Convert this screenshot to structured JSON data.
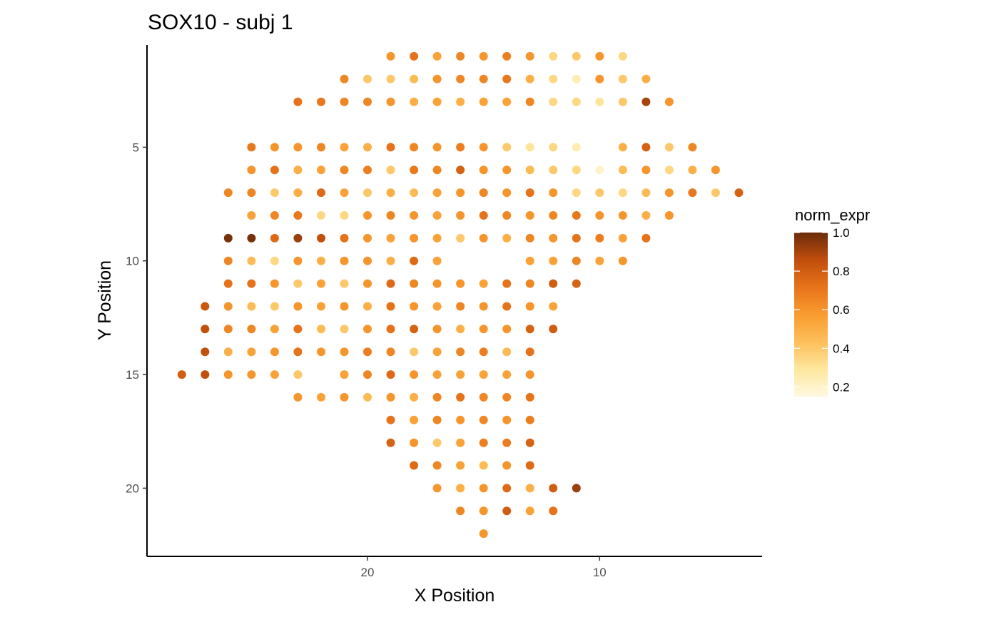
{
  "chart_data": {
    "type": "scatter",
    "title": "SOX10 - subj 1",
    "xlabel": "X Position",
    "ylabel": "Y Position",
    "x_reversed": true,
    "y_reversed": true,
    "xlim": [
      3.0,
      29.5
    ],
    "ylim": [
      0.5,
      23.0
    ],
    "x_ticks": [
      20,
      10
    ],
    "y_ticks": [
      5,
      10,
      15,
      20
    ],
    "grid": false,
    "color_legend": {
      "title": "norm_expr",
      "ticks": [
        1.0,
        0.8,
        0.6,
        0.4,
        0.2
      ],
      "range": [
        0.15,
        1.0
      ],
      "colors": [
        "#fff9e0",
        "#fee79e",
        "#fdbf5a",
        "#f99c30",
        "#e7731a",
        "#c04e0c",
        "#6b2c0b"
      ]
    },
    "legend_position": "right",
    "points": [
      {
        "x": 19,
        "y": 1,
        "v": 0.6
      },
      {
        "x": 18,
        "y": 1,
        "v": 0.72
      },
      {
        "x": 17,
        "y": 1,
        "v": 0.55
      },
      {
        "x": 16,
        "y": 1,
        "v": 0.65
      },
      {
        "x": 15,
        "y": 1,
        "v": 0.6
      },
      {
        "x": 14,
        "y": 1,
        "v": 0.68
      },
      {
        "x": 13,
        "y": 1,
        "v": 0.6
      },
      {
        "x": 12,
        "y": 1,
        "v": 0.35
      },
      {
        "x": 11,
        "y": 1,
        "v": 0.4
      },
      {
        "x": 10,
        "y": 1,
        "v": 0.6
      },
      {
        "x": 9,
        "y": 1,
        "v": 0.35
      },
      {
        "x": 21,
        "y": 2,
        "v": 0.65
      },
      {
        "x": 20,
        "y": 2,
        "v": 0.4
      },
      {
        "x": 19,
        "y": 2,
        "v": 0.4
      },
      {
        "x": 18,
        "y": 2,
        "v": 0.45
      },
      {
        "x": 17,
        "y": 2,
        "v": 0.6
      },
      {
        "x": 16,
        "y": 2,
        "v": 0.65
      },
      {
        "x": 15,
        "y": 2,
        "v": 0.65
      },
      {
        "x": 14,
        "y": 2,
        "v": 0.7
      },
      {
        "x": 13,
        "y": 2,
        "v": 0.5
      },
      {
        "x": 12,
        "y": 2,
        "v": 0.35
      },
      {
        "x": 11,
        "y": 2,
        "v": 0.25
      },
      {
        "x": 10,
        "y": 2,
        "v": 0.6
      },
      {
        "x": 9,
        "y": 2,
        "v": 0.4
      },
      {
        "x": 8,
        "y": 2,
        "v": 0.5
      },
      {
        "x": 23,
        "y": 3,
        "v": 0.72
      },
      {
        "x": 22,
        "y": 3,
        "v": 0.7
      },
      {
        "x": 21,
        "y": 3,
        "v": 0.65
      },
      {
        "x": 20,
        "y": 3,
        "v": 0.65
      },
      {
        "x": 19,
        "y": 3,
        "v": 0.6
      },
      {
        "x": 18,
        "y": 3,
        "v": 0.5
      },
      {
        "x": 17,
        "y": 3,
        "v": 0.55
      },
      {
        "x": 16,
        "y": 3,
        "v": 0.5
      },
      {
        "x": 15,
        "y": 3,
        "v": 0.55
      },
      {
        "x": 14,
        "y": 3,
        "v": 0.55
      },
      {
        "x": 13,
        "y": 3,
        "v": 0.65
      },
      {
        "x": 12,
        "y": 3,
        "v": 0.35
      },
      {
        "x": 11,
        "y": 3,
        "v": 0.35
      },
      {
        "x": 10,
        "y": 3,
        "v": 0.3
      },
      {
        "x": 9,
        "y": 3,
        "v": 0.4
      },
      {
        "x": 8,
        "y": 3,
        "v": 0.9
      },
      {
        "x": 7,
        "y": 3,
        "v": 0.6
      },
      {
        "x": 25,
        "y": 5,
        "v": 0.7
      },
      {
        "x": 24,
        "y": 5,
        "v": 0.6
      },
      {
        "x": 23,
        "y": 5,
        "v": 0.6
      },
      {
        "x": 22,
        "y": 5,
        "v": 0.65
      },
      {
        "x": 21,
        "y": 5,
        "v": 0.55
      },
      {
        "x": 20,
        "y": 5,
        "v": 0.5
      },
      {
        "x": 19,
        "y": 5,
        "v": 0.72
      },
      {
        "x": 18,
        "y": 5,
        "v": 0.65
      },
      {
        "x": 17,
        "y": 5,
        "v": 0.6
      },
      {
        "x": 16,
        "y": 5,
        "v": 0.68
      },
      {
        "x": 15,
        "y": 5,
        "v": 0.6
      },
      {
        "x": 14,
        "y": 5,
        "v": 0.4
      },
      {
        "x": 13,
        "y": 5,
        "v": 0.3
      },
      {
        "x": 12,
        "y": 5,
        "v": 0.35
      },
      {
        "x": 11,
        "y": 5,
        "v": 0.25
      },
      {
        "x": 9,
        "y": 5,
        "v": 0.5
      },
      {
        "x": 8,
        "y": 5,
        "v": 0.78
      },
      {
        "x": 7,
        "y": 5,
        "v": 0.4
      },
      {
        "x": 6,
        "y": 5,
        "v": 0.65
      },
      {
        "x": 25,
        "y": 6,
        "v": 0.6
      },
      {
        "x": 24,
        "y": 6,
        "v": 0.72
      },
      {
        "x": 23,
        "y": 6,
        "v": 0.5
      },
      {
        "x": 22,
        "y": 6,
        "v": 0.55
      },
      {
        "x": 21,
        "y": 6,
        "v": 0.65
      },
      {
        "x": 20,
        "y": 6,
        "v": 0.68
      },
      {
        "x": 19,
        "y": 6,
        "v": 0.4
      },
      {
        "x": 18,
        "y": 6,
        "v": 0.7
      },
      {
        "x": 17,
        "y": 6,
        "v": 0.65
      },
      {
        "x": 16,
        "y": 6,
        "v": 0.78
      },
      {
        "x": 15,
        "y": 6,
        "v": 0.6
      },
      {
        "x": 14,
        "y": 6,
        "v": 0.6
      },
      {
        "x": 13,
        "y": 6,
        "v": 0.45
      },
      {
        "x": 12,
        "y": 6,
        "v": 0.4
      },
      {
        "x": 11,
        "y": 6,
        "v": 0.35
      },
      {
        "x": 10,
        "y": 6,
        "v": 0.2
      },
      {
        "x": 9,
        "y": 6,
        "v": 0.45
      },
      {
        "x": 8,
        "y": 6,
        "v": 0.6
      },
      {
        "x": 7,
        "y": 6,
        "v": 0.35
      },
      {
        "x": 6,
        "y": 6,
        "v": 0.5
      },
      {
        "x": 5,
        "y": 6,
        "v": 0.6
      },
      {
        "x": 26,
        "y": 7,
        "v": 0.65
      },
      {
        "x": 25,
        "y": 7,
        "v": 0.65
      },
      {
        "x": 24,
        "y": 7,
        "v": 0.4
      },
      {
        "x": 23,
        "y": 7,
        "v": 0.5
      },
      {
        "x": 22,
        "y": 7,
        "v": 0.75
      },
      {
        "x": 21,
        "y": 7,
        "v": 0.55
      },
      {
        "x": 20,
        "y": 7,
        "v": 0.4
      },
      {
        "x": 19,
        "y": 7,
        "v": 0.5
      },
      {
        "x": 18,
        "y": 7,
        "v": 0.45
      },
      {
        "x": 17,
        "y": 7,
        "v": 0.55
      },
      {
        "x": 16,
        "y": 7,
        "v": 0.6
      },
      {
        "x": 15,
        "y": 7,
        "v": 0.65
      },
      {
        "x": 14,
        "y": 7,
        "v": 0.6
      },
      {
        "x": 13,
        "y": 7,
        "v": 0.72
      },
      {
        "x": 12,
        "y": 7,
        "v": 0.6
      },
      {
        "x": 11,
        "y": 7,
        "v": 0.35
      },
      {
        "x": 10,
        "y": 7,
        "v": 0.4
      },
      {
        "x": 9,
        "y": 7,
        "v": 0.35
      },
      {
        "x": 8,
        "y": 7,
        "v": 0.45
      },
      {
        "x": 7,
        "y": 7,
        "v": 0.6
      },
      {
        "x": 6,
        "y": 7,
        "v": 0.7
      },
      {
        "x": 5,
        "y": 7,
        "v": 0.4
      },
      {
        "x": 4,
        "y": 7,
        "v": 0.78
      },
      {
        "x": 25,
        "y": 8,
        "v": 0.55
      },
      {
        "x": 24,
        "y": 8,
        "v": 0.65
      },
      {
        "x": 23,
        "y": 8,
        "v": 0.7
      },
      {
        "x": 22,
        "y": 8,
        "v": 0.35
      },
      {
        "x": 21,
        "y": 8,
        "v": 0.35
      },
      {
        "x": 20,
        "y": 8,
        "v": 0.6
      },
      {
        "x": 19,
        "y": 8,
        "v": 0.65
      },
      {
        "x": 18,
        "y": 8,
        "v": 0.6
      },
      {
        "x": 17,
        "y": 8,
        "v": 0.55
      },
      {
        "x": 16,
        "y": 8,
        "v": 0.6
      },
      {
        "x": 15,
        "y": 8,
        "v": 0.72
      },
      {
        "x": 14,
        "y": 8,
        "v": 0.65
      },
      {
        "x": 13,
        "y": 8,
        "v": 0.6
      },
      {
        "x": 12,
        "y": 8,
        "v": 0.65
      },
      {
        "x": 11,
        "y": 8,
        "v": 0.7
      },
      {
        "x": 10,
        "y": 8,
        "v": 0.6
      },
      {
        "x": 9,
        "y": 8,
        "v": 0.6
      },
      {
        "x": 8,
        "y": 8,
        "v": 0.5
      },
      {
        "x": 7,
        "y": 8,
        "v": 0.6
      },
      {
        "x": 26,
        "y": 9,
        "v": 0.98
      },
      {
        "x": 25,
        "y": 9,
        "v": 0.98
      },
      {
        "x": 24,
        "y": 9,
        "v": 0.75
      },
      {
        "x": 23,
        "y": 9,
        "v": 0.92
      },
      {
        "x": 22,
        "y": 9,
        "v": 0.85
      },
      {
        "x": 21,
        "y": 9,
        "v": 0.72
      },
      {
        "x": 20,
        "y": 9,
        "v": 0.6
      },
      {
        "x": 19,
        "y": 9,
        "v": 0.55
      },
      {
        "x": 18,
        "y": 9,
        "v": 0.6
      },
      {
        "x": 17,
        "y": 9,
        "v": 0.55
      },
      {
        "x": 16,
        "y": 9,
        "v": 0.4
      },
      {
        "x": 15,
        "y": 9,
        "v": 0.6
      },
      {
        "x": 14,
        "y": 9,
        "v": 0.5
      },
      {
        "x": 13,
        "y": 9,
        "v": 0.65
      },
      {
        "x": 12,
        "y": 9,
        "v": 0.6
      },
      {
        "x": 11,
        "y": 9,
        "v": 0.72
      },
      {
        "x": 10,
        "y": 9,
        "v": 0.68
      },
      {
        "x": 9,
        "y": 9,
        "v": 0.55
      },
      {
        "x": 8,
        "y": 9,
        "v": 0.72
      },
      {
        "x": 26,
        "y": 10,
        "v": 0.65
      },
      {
        "x": 25,
        "y": 10,
        "v": 0.45
      },
      {
        "x": 24,
        "y": 10,
        "v": 0.35
      },
      {
        "x": 23,
        "y": 10,
        "v": 0.6
      },
      {
        "x": 22,
        "y": 10,
        "v": 0.5
      },
      {
        "x": 21,
        "y": 10,
        "v": 0.6
      },
      {
        "x": 20,
        "y": 10,
        "v": 0.6
      },
      {
        "x": 19,
        "y": 10,
        "v": 0.5
      },
      {
        "x": 18,
        "y": 10,
        "v": 0.75
      },
      {
        "x": 17,
        "y": 10,
        "v": 0.55
      },
      {
        "x": 13,
        "y": 10,
        "v": 0.55
      },
      {
        "x": 12,
        "y": 10,
        "v": 0.55
      },
      {
        "x": 11,
        "y": 10,
        "v": 0.65
      },
      {
        "x": 10,
        "y": 10,
        "v": 0.55
      },
      {
        "x": 9,
        "y": 10,
        "v": 0.6
      },
      {
        "x": 26,
        "y": 11,
        "v": 0.72
      },
      {
        "x": 25,
        "y": 11,
        "v": 0.72
      },
      {
        "x": 24,
        "y": 11,
        "v": 0.6
      },
      {
        "x": 23,
        "y": 11,
        "v": 0.4
      },
      {
        "x": 22,
        "y": 11,
        "v": 0.55
      },
      {
        "x": 21,
        "y": 11,
        "v": 0.4
      },
      {
        "x": 20,
        "y": 11,
        "v": 0.6
      },
      {
        "x": 19,
        "y": 11,
        "v": 0.75
      },
      {
        "x": 18,
        "y": 11,
        "v": 0.65
      },
      {
        "x": 17,
        "y": 11,
        "v": 0.6
      },
      {
        "x": 16,
        "y": 11,
        "v": 0.6
      },
      {
        "x": 15,
        "y": 11,
        "v": 0.55
      },
      {
        "x": 14,
        "y": 11,
        "v": 0.72
      },
      {
        "x": 13,
        "y": 11,
        "v": 0.65
      },
      {
        "x": 12,
        "y": 11,
        "v": 0.8
      },
      {
        "x": 11,
        "y": 11,
        "v": 0.78
      },
      {
        "x": 27,
        "y": 12,
        "v": 0.82
      },
      {
        "x": 26,
        "y": 12,
        "v": 0.6
      },
      {
        "x": 25,
        "y": 12,
        "v": 0.45
      },
      {
        "x": 24,
        "y": 12,
        "v": 0.4
      },
      {
        "x": 23,
        "y": 12,
        "v": 0.6
      },
      {
        "x": 22,
        "y": 12,
        "v": 0.55
      },
      {
        "x": 21,
        "y": 12,
        "v": 0.6
      },
      {
        "x": 20,
        "y": 12,
        "v": 0.5
      },
      {
        "x": 19,
        "y": 12,
        "v": 0.72
      },
      {
        "x": 18,
        "y": 12,
        "v": 0.6
      },
      {
        "x": 17,
        "y": 12,
        "v": 0.55
      },
      {
        "x": 16,
        "y": 12,
        "v": 0.65
      },
      {
        "x": 15,
        "y": 12,
        "v": 0.6
      },
      {
        "x": 14,
        "y": 12,
        "v": 0.72
      },
      {
        "x": 13,
        "y": 12,
        "v": 0.6
      },
      {
        "x": 12,
        "y": 12,
        "v": 0.55
      },
      {
        "x": 27,
        "y": 13,
        "v": 0.85
      },
      {
        "x": 26,
        "y": 13,
        "v": 0.65
      },
      {
        "x": 25,
        "y": 13,
        "v": 0.65
      },
      {
        "x": 24,
        "y": 13,
        "v": 0.55
      },
      {
        "x": 23,
        "y": 13,
        "v": 0.72
      },
      {
        "x": 22,
        "y": 13,
        "v": 0.45
      },
      {
        "x": 21,
        "y": 13,
        "v": 0.4
      },
      {
        "x": 20,
        "y": 13,
        "v": 0.6
      },
      {
        "x": 19,
        "y": 13,
        "v": 0.72
      },
      {
        "x": 18,
        "y": 13,
        "v": 0.78
      },
      {
        "x": 17,
        "y": 13,
        "v": 0.6
      },
      {
        "x": 16,
        "y": 13,
        "v": 0.5
      },
      {
        "x": 15,
        "y": 13,
        "v": 0.6
      },
      {
        "x": 14,
        "y": 13,
        "v": 0.6
      },
      {
        "x": 13,
        "y": 13,
        "v": 0.78
      },
      {
        "x": 12,
        "y": 13,
        "v": 0.8
      },
      {
        "x": 27,
        "y": 14,
        "v": 0.85
      },
      {
        "x": 26,
        "y": 14,
        "v": 0.5
      },
      {
        "x": 25,
        "y": 14,
        "v": 0.55
      },
      {
        "x": 24,
        "y": 14,
        "v": 0.6
      },
      {
        "x": 23,
        "y": 14,
        "v": 0.72
      },
      {
        "x": 22,
        "y": 14,
        "v": 0.6
      },
      {
        "x": 21,
        "y": 14,
        "v": 0.6
      },
      {
        "x": 20,
        "y": 14,
        "v": 0.68
      },
      {
        "x": 19,
        "y": 14,
        "v": 0.65
      },
      {
        "x": 18,
        "y": 14,
        "v": 0.4
      },
      {
        "x": 17,
        "y": 14,
        "v": 0.55
      },
      {
        "x": 16,
        "y": 14,
        "v": 0.65
      },
      {
        "x": 15,
        "y": 14,
        "v": 0.68
      },
      {
        "x": 14,
        "y": 14,
        "v": 0.45
      },
      {
        "x": 13,
        "y": 14,
        "v": 0.72
      },
      {
        "x": 28,
        "y": 15,
        "v": 0.8
      },
      {
        "x": 27,
        "y": 15,
        "v": 0.85
      },
      {
        "x": 26,
        "y": 15,
        "v": 0.6
      },
      {
        "x": 25,
        "y": 15,
        "v": 0.6
      },
      {
        "x": 24,
        "y": 15,
        "v": 0.55
      },
      {
        "x": 23,
        "y": 15,
        "v": 0.4
      },
      {
        "x": 21,
        "y": 15,
        "v": 0.55
      },
      {
        "x": 20,
        "y": 15,
        "v": 0.65
      },
      {
        "x": 19,
        "y": 15,
        "v": 0.75
      },
      {
        "x": 18,
        "y": 15,
        "v": 0.6
      },
      {
        "x": 17,
        "y": 15,
        "v": 0.55
      },
      {
        "x": 16,
        "y": 15,
        "v": 0.55
      },
      {
        "x": 15,
        "y": 15,
        "v": 0.55
      },
      {
        "x": 14,
        "y": 15,
        "v": 0.55
      },
      {
        "x": 13,
        "y": 15,
        "v": 0.6
      },
      {
        "x": 23,
        "y": 16,
        "v": 0.6
      },
      {
        "x": 22,
        "y": 16,
        "v": 0.55
      },
      {
        "x": 21,
        "y": 16,
        "v": 0.6
      },
      {
        "x": 20,
        "y": 16,
        "v": 0.45
      },
      {
        "x": 19,
        "y": 16,
        "v": 0.6
      },
      {
        "x": 18,
        "y": 16,
        "v": 0.5
      },
      {
        "x": 17,
        "y": 16,
        "v": 0.65
      },
      {
        "x": 16,
        "y": 16,
        "v": 0.72
      },
      {
        "x": 15,
        "y": 16,
        "v": 0.65
      },
      {
        "x": 14,
        "y": 16,
        "v": 0.65
      },
      {
        "x": 13,
        "y": 16,
        "v": 0.72
      },
      {
        "x": 19,
        "y": 17,
        "v": 0.72
      },
      {
        "x": 18,
        "y": 17,
        "v": 0.55
      },
      {
        "x": 17,
        "y": 17,
        "v": 0.65
      },
      {
        "x": 16,
        "y": 17,
        "v": 0.6
      },
      {
        "x": 15,
        "y": 17,
        "v": 0.65
      },
      {
        "x": 14,
        "y": 17,
        "v": 0.6
      },
      {
        "x": 13,
        "y": 17,
        "v": 0.68
      },
      {
        "x": 19,
        "y": 18,
        "v": 0.78
      },
      {
        "x": 18,
        "y": 18,
        "v": 0.6
      },
      {
        "x": 17,
        "y": 18,
        "v": 0.4
      },
      {
        "x": 16,
        "y": 18,
        "v": 0.55
      },
      {
        "x": 15,
        "y": 18,
        "v": 0.68
      },
      {
        "x": 14,
        "y": 18,
        "v": 0.68
      },
      {
        "x": 13,
        "y": 18,
        "v": 0.78
      },
      {
        "x": 18,
        "y": 19,
        "v": 0.75
      },
      {
        "x": 17,
        "y": 19,
        "v": 0.65
      },
      {
        "x": 16,
        "y": 19,
        "v": 0.55
      },
      {
        "x": 15,
        "y": 19,
        "v": 0.45
      },
      {
        "x": 14,
        "y": 19,
        "v": 0.6
      },
      {
        "x": 13,
        "y": 19,
        "v": 0.75
      },
      {
        "x": 17,
        "y": 20,
        "v": 0.6
      },
      {
        "x": 16,
        "y": 20,
        "v": 0.5
      },
      {
        "x": 15,
        "y": 20,
        "v": 0.6
      },
      {
        "x": 14,
        "y": 20,
        "v": 0.75
      },
      {
        "x": 13,
        "y": 20,
        "v": 0.5
      },
      {
        "x": 12,
        "y": 20,
        "v": 0.8
      },
      {
        "x": 11,
        "y": 20,
        "v": 0.92
      },
      {
        "x": 16,
        "y": 21,
        "v": 0.65
      },
      {
        "x": 15,
        "y": 21,
        "v": 0.6
      },
      {
        "x": 14,
        "y": 21,
        "v": 0.8
      },
      {
        "x": 13,
        "y": 21,
        "v": 0.55
      },
      {
        "x": 12,
        "y": 21,
        "v": 0.72
      },
      {
        "x": 15,
        "y": 22,
        "v": 0.6
      }
    ]
  }
}
